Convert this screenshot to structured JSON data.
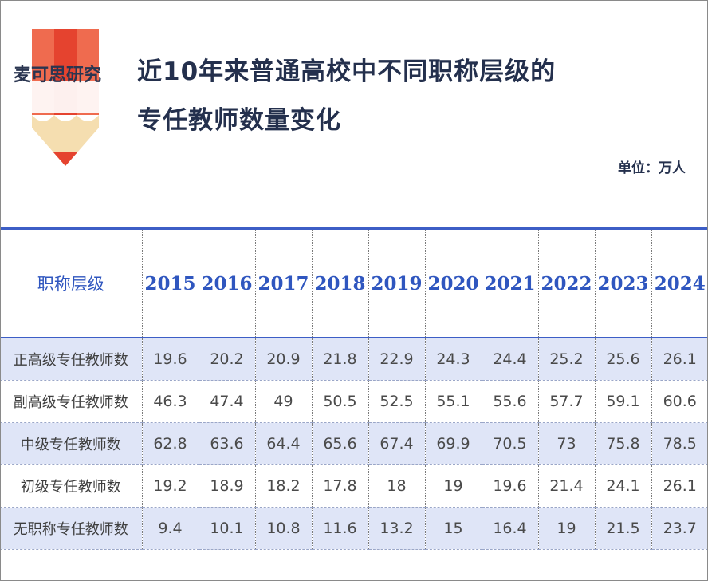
{
  "header": {
    "logo_text": "麦可思研究",
    "title_line1": "近10年来普通高校中不同职称层级的",
    "title_line2": "专任教师数量变化",
    "unit": "单位：万人"
  },
  "colors": {
    "accent": "#3d5ec6",
    "header_text": "#2f56bf",
    "row_shade": "#dfe5f7",
    "title_text": "#24304d",
    "logo_red": "#e5432f",
    "logo_cream": "#f5deb0"
  },
  "chart_data": {
    "type": "table",
    "row_header": "职称层级",
    "columns": [
      "2015",
      "2016",
      "2017",
      "2018",
      "2019",
      "2020",
      "2021",
      "2022",
      "2023",
      "2024"
    ],
    "rows": [
      {
        "label": "正高级专任教师数",
        "values": [
          "19.6",
          "20.2",
          "20.9",
          "21.8",
          "22.9",
          "24.3",
          "24.4",
          "25.2",
          "25.6",
          "26.1"
        ]
      },
      {
        "label": "副高级专任教师数",
        "values": [
          "46.3",
          "47.4",
          "49",
          "50.5",
          "52.5",
          "55.1",
          "55.6",
          "57.7",
          "59.1",
          "60.6"
        ]
      },
      {
        "label": "中级专任教师数",
        "values": [
          "62.8",
          "63.6",
          "64.4",
          "65.6",
          "67.4",
          "69.9",
          "70.5",
          "73",
          "75.8",
          "78.5"
        ]
      },
      {
        "label": "初级专任教师数",
        "values": [
          "19.2",
          "18.9",
          "18.2",
          "17.8",
          "18",
          "19",
          "19.6",
          "21.4",
          "24.1",
          "26.1"
        ]
      },
      {
        "label": "无职称专任教师数",
        "values": [
          "9.4",
          "10.1",
          "10.8",
          "11.6",
          "13.2",
          "15",
          "16.4",
          "19",
          "21.5",
          "23.7"
        ]
      }
    ]
  }
}
